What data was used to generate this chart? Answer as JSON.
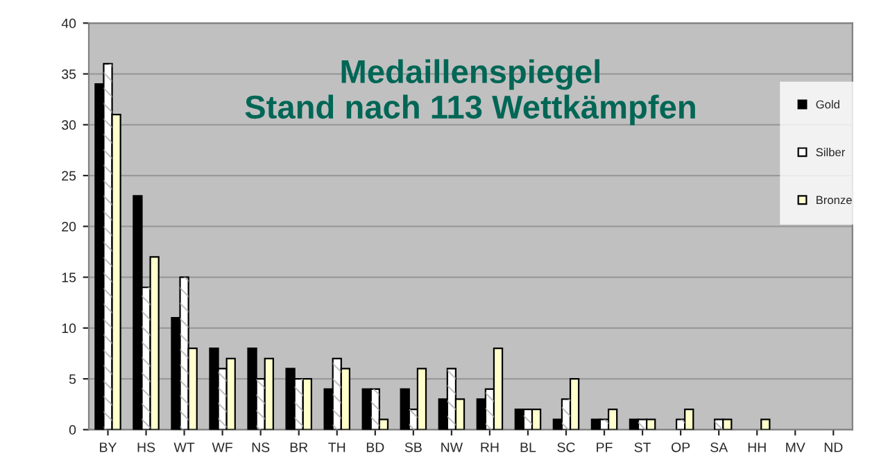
{
  "chart_data": {
    "type": "bar",
    "title": "Medaillenspiegel\nStand nach 113 Wettkämpfen",
    "categories": [
      "BY",
      "HS",
      "WT",
      "WF",
      "NS",
      "BR",
      "TH",
      "BD",
      "SB",
      "NW",
      "RH",
      "BL",
      "SC",
      "PF",
      "ST",
      "OP",
      "SA",
      "HH",
      "MV",
      "ND"
    ],
    "series": [
      {
        "name": "Gold",
        "color": "#000000",
        "values": [
          34,
          23,
          11,
          8,
          8,
          6,
          4,
          4,
          4,
          3,
          3,
          2,
          1,
          1,
          1,
          0,
          0,
          0,
          0,
          0
        ]
      },
      {
        "name": "Silber",
        "color": "#ffffff",
        "values": [
          36,
          14,
          15,
          6,
          5,
          5,
          7,
          4,
          2,
          6,
          4,
          2,
          3,
          1,
          1,
          1,
          1,
          0,
          0,
          0
        ]
      },
      {
        "name": "Bronze",
        "color": "#ffffcc",
        "values": [
          31,
          17,
          8,
          7,
          7,
          5,
          6,
          1,
          6,
          3,
          8,
          2,
          5,
          2,
          1,
          2,
          1,
          1,
          0,
          0
        ]
      }
    ],
    "ylim": [
      0,
      40
    ],
    "yticks": [
      0,
      5,
      10,
      15,
      20,
      25,
      30,
      35,
      40
    ],
    "grid": "y",
    "legend": "right"
  }
}
